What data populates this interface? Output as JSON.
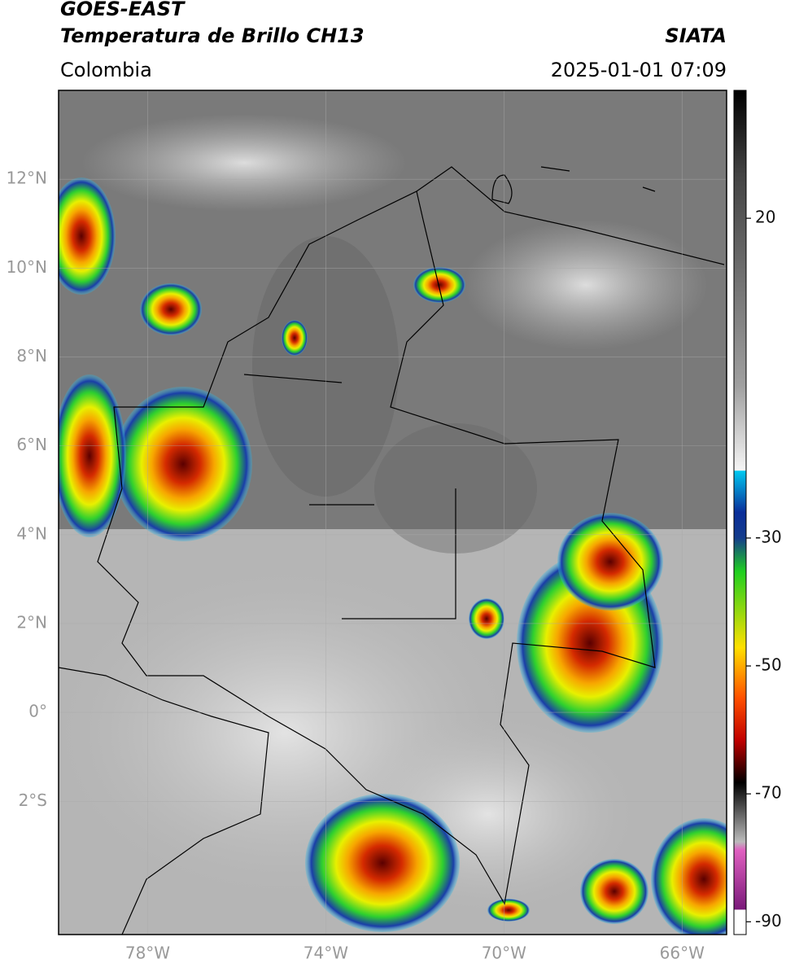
{
  "header": {
    "title": "GOES-EAST",
    "subtitle": "Temperatura de Brillo CH13",
    "source": "SIATA",
    "region": "Colombia",
    "datetime": "2025-01-01 07:09"
  },
  "map": {
    "lonlim": [
      -80,
      -65
    ],
    "latlim": [
      -5,
      14
    ],
    "lat_ticks": [
      {
        "value": 12,
        "label": "12°N"
      },
      {
        "value": 10,
        "label": "10°N"
      },
      {
        "value": 8,
        "label": "8°N"
      },
      {
        "value": 6,
        "label": "6°N"
      },
      {
        "value": 4,
        "label": "4°N"
      },
      {
        "value": 2,
        "label": "2°N"
      },
      {
        "value": 0,
        "label": "0°"
      },
      {
        "value": -2,
        "label": "2°S"
      }
    ],
    "lon_ticks": [
      {
        "value": -78,
        "label": "78°W"
      },
      {
        "value": -74,
        "label": "74°W"
      },
      {
        "value": -70,
        "label": "70°W"
      },
      {
        "value": -66,
        "label": "66°W"
      }
    ]
  },
  "colorbar": {
    "ylim": [
      -92,
      40
    ],
    "yticks": [
      20,
      -30,
      -50,
      -70,
      -90
    ]
  }
}
